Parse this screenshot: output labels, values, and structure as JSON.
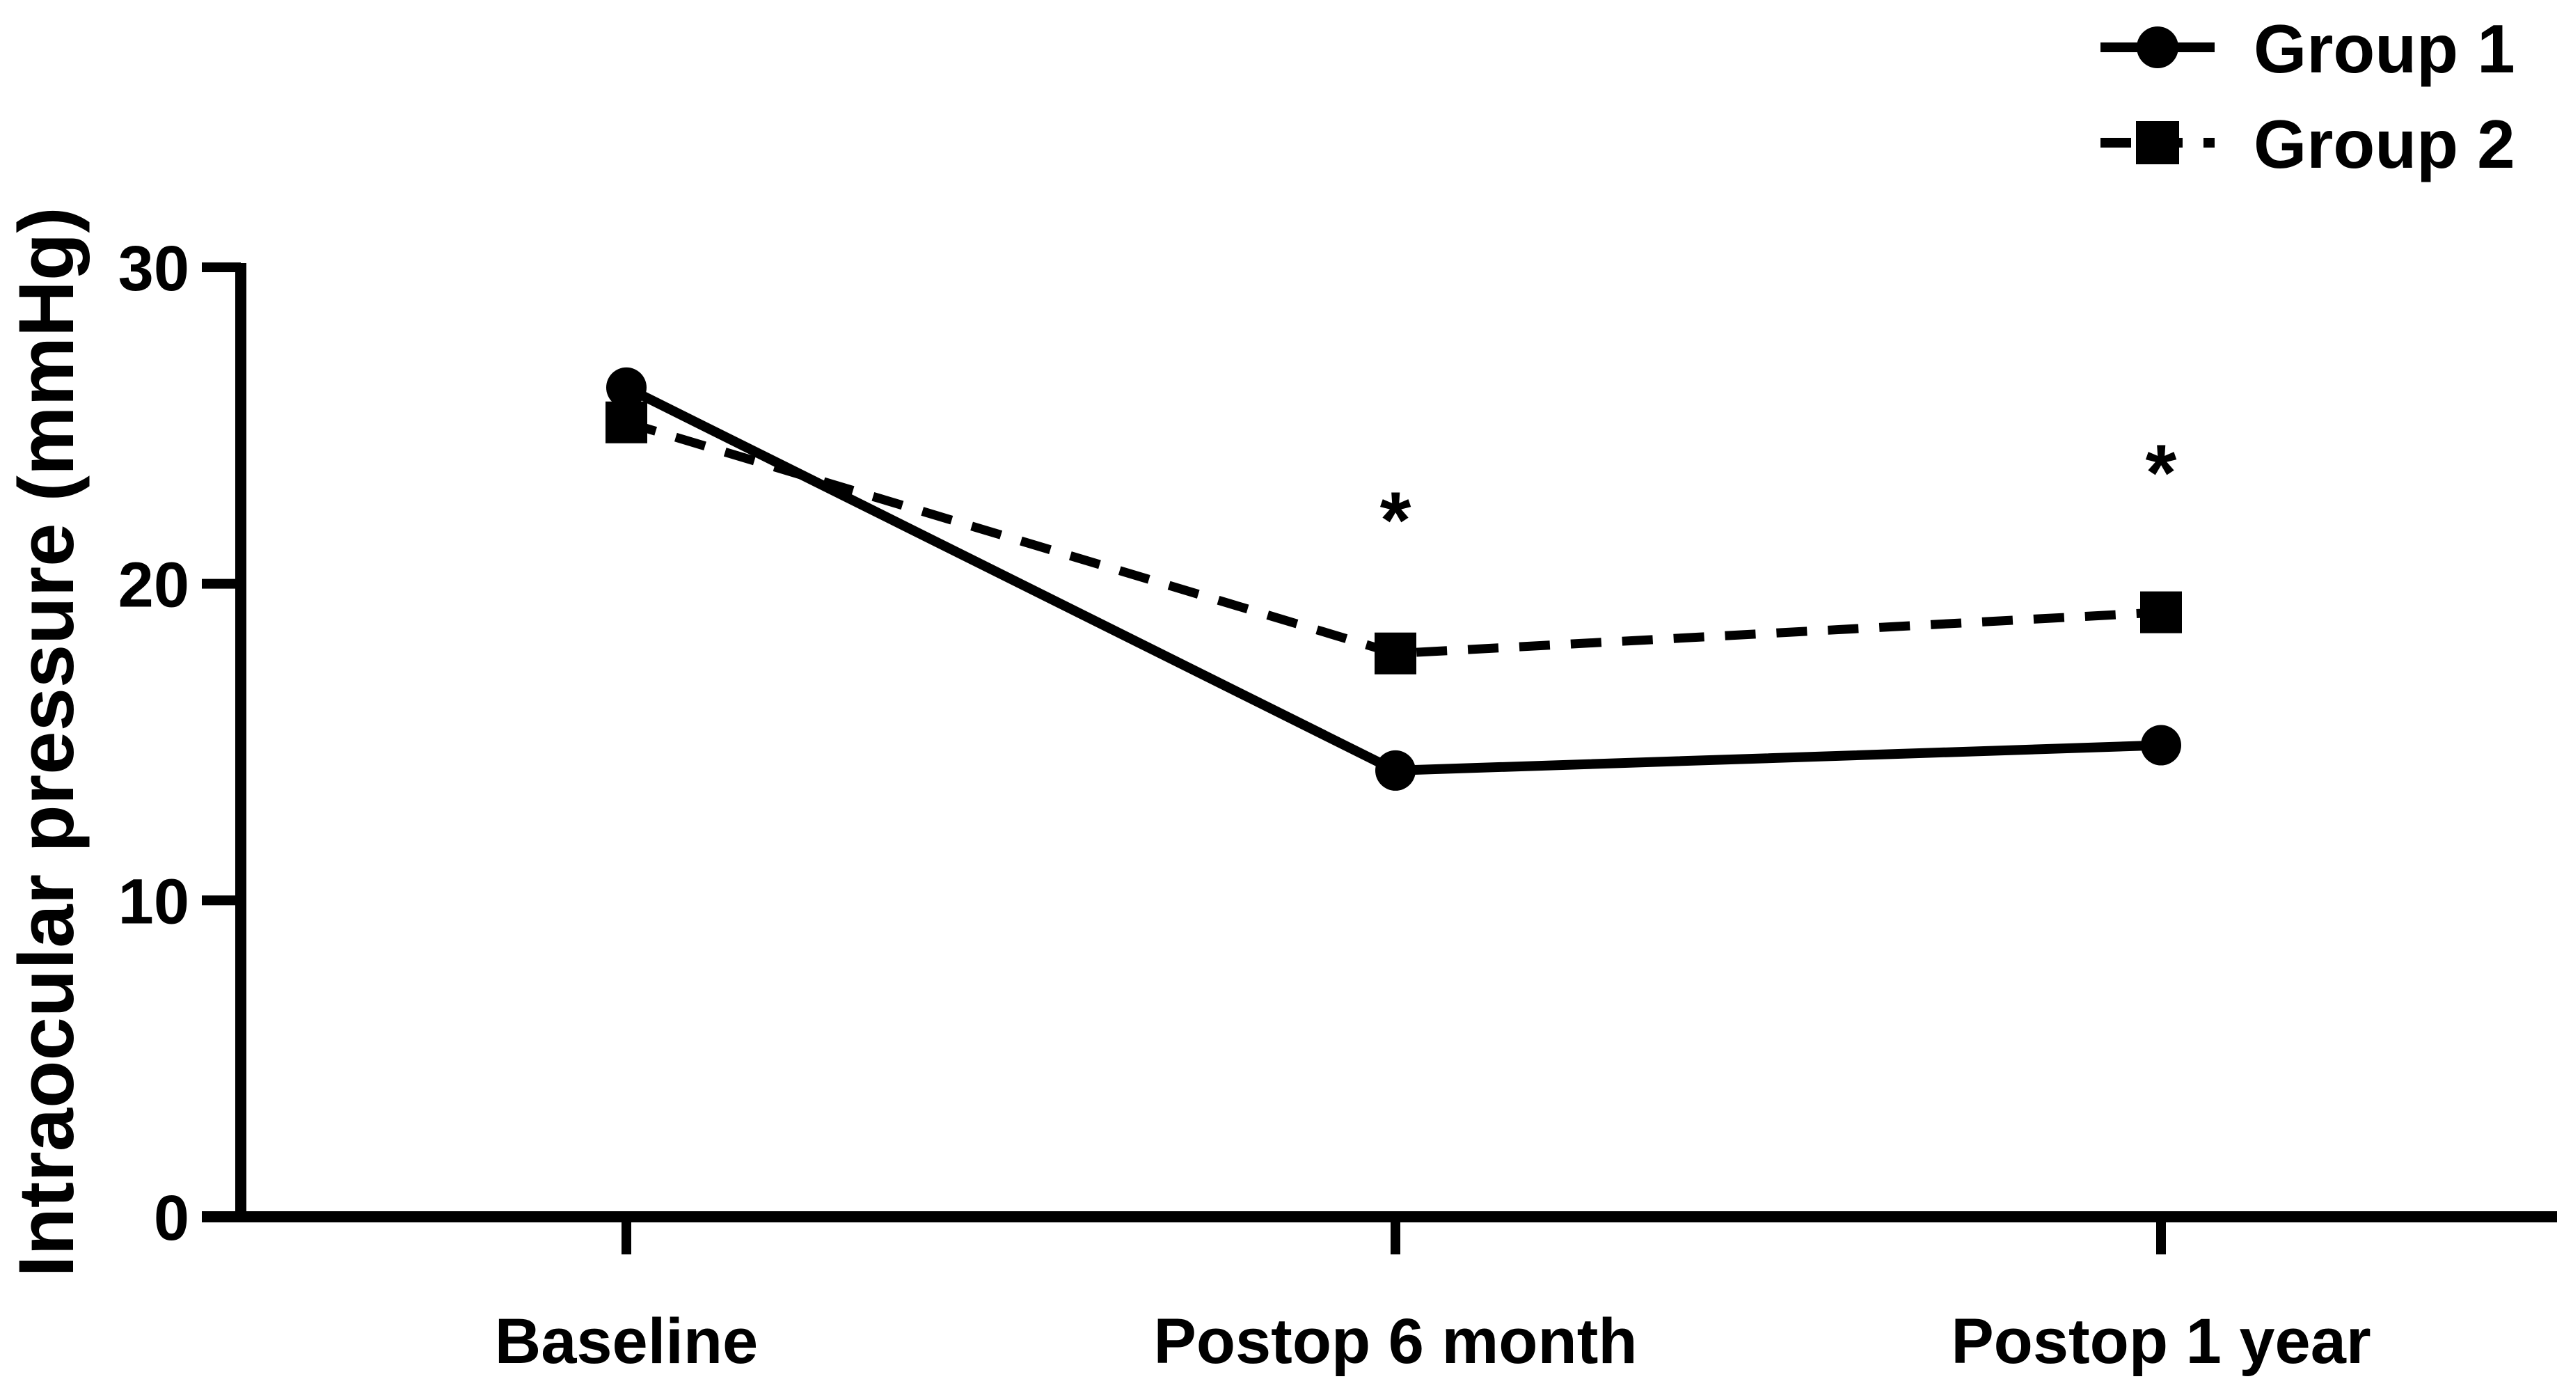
{
  "figure": {
    "background": "#ffffff",
    "ink_color": "#000000"
  },
  "chart_data": {
    "type": "line",
    "title": "",
    "xlabel": "",
    "ylabel": "Intraocular pressure (mmHg)",
    "categories": [
      "Baseline",
      "Postop 6 month",
      "Postop 1 year"
    ],
    "series": [
      {
        "name": "Group 1",
        "marker": "circle",
        "line_style": "solid",
        "values": [
          26.2,
          14.1,
          14.9
        ]
      },
      {
        "name": "Group 2",
        "marker": "square",
        "line_style": "dashed",
        "values": [
          25.1,
          17.8,
          19.1
        ]
      }
    ],
    "ylim": [
      0,
      30
    ],
    "yticks": [
      0,
      10,
      20,
      30
    ],
    "grid": false,
    "legend_position": "top-right",
    "annotations": [
      {
        "text": "*",
        "category_index": 1,
        "y_value": 22.6
      },
      {
        "text": "*",
        "category_index": 2,
        "y_value": 24.1
      }
    ]
  }
}
